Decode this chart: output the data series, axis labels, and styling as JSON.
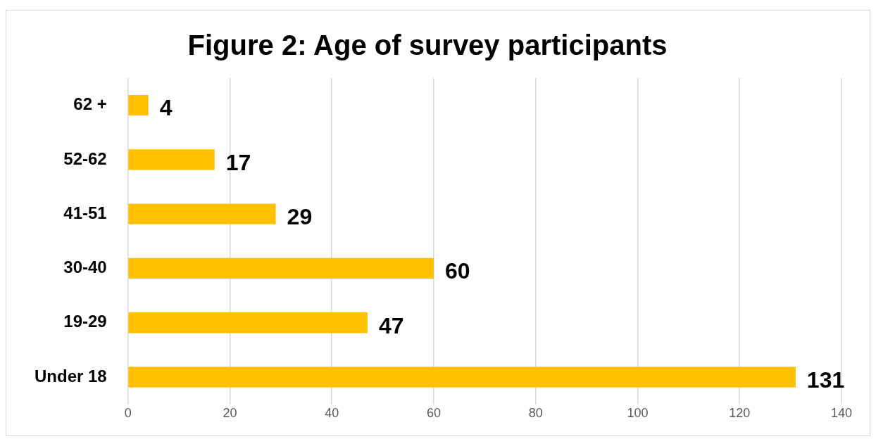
{
  "chart_data": {
    "type": "bar",
    "orientation": "horizontal",
    "title": "Figure 2: Age of survey participants",
    "categories": [
      "62 +",
      "52-62",
      "41-51",
      "30-40",
      "19-29",
      "Under 18"
    ],
    "values": [
      4,
      17,
      29,
      60,
      47,
      131
    ],
    "color": "#ffc000",
    "xlim": [
      0,
      140
    ],
    "xticks": [
      0,
      20,
      40,
      60,
      80,
      100,
      120,
      140
    ],
    "grid": "x",
    "data_labels": true
  }
}
